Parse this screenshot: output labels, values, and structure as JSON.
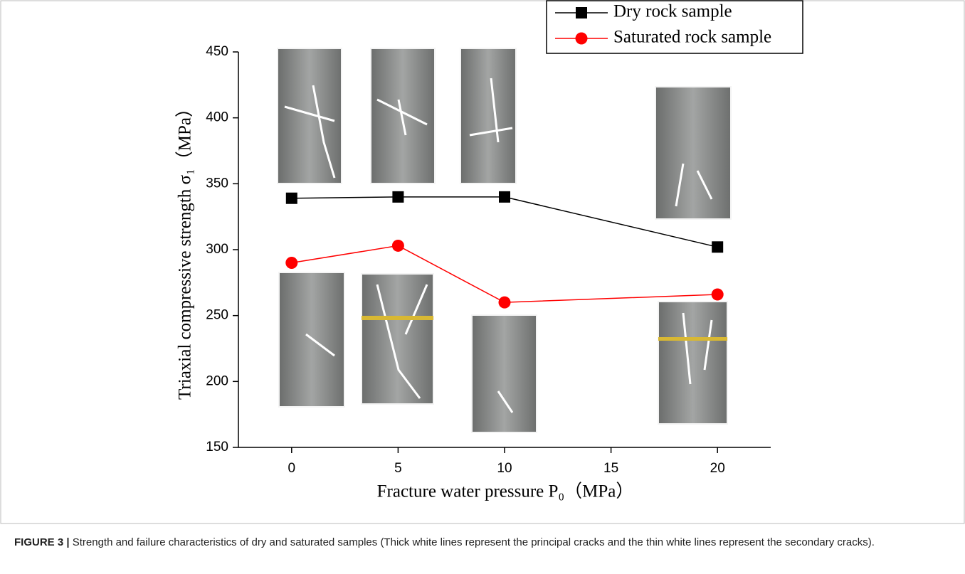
{
  "chart_data": {
    "type": "line",
    "xlabel": "Fracture water pressure P₀（MPa）",
    "ylabel": "Triaxial compressive strength σ₁（MPa）",
    "x": [
      0,
      5,
      10,
      20
    ],
    "series": [
      {
        "name": "Dry rock sample",
        "color": "#000000",
        "marker": "square",
        "values": [
          339,
          340,
          340,
          302
        ]
      },
      {
        "name": "Saturated rock sample",
        "color": "#ff0000",
        "marker": "circle",
        "values": [
          290,
          303,
          260,
          266
        ]
      }
    ],
    "xlim": [
      -2.5,
      22.5
    ],
    "xticks": [
      0,
      5,
      10,
      15,
      20
    ],
    "ylim": [
      150,
      450
    ],
    "yticks": [
      150,
      200,
      250,
      300,
      350,
      400,
      450
    ],
    "grid": false,
    "legend": "upper right"
  },
  "caption": {
    "label": "FIGURE 3 |",
    "text": "Strength and failure characteristics of dry and saturated samples (Thick white lines represent the principal cracks and the thin white lines represent the secondary cracks)."
  }
}
